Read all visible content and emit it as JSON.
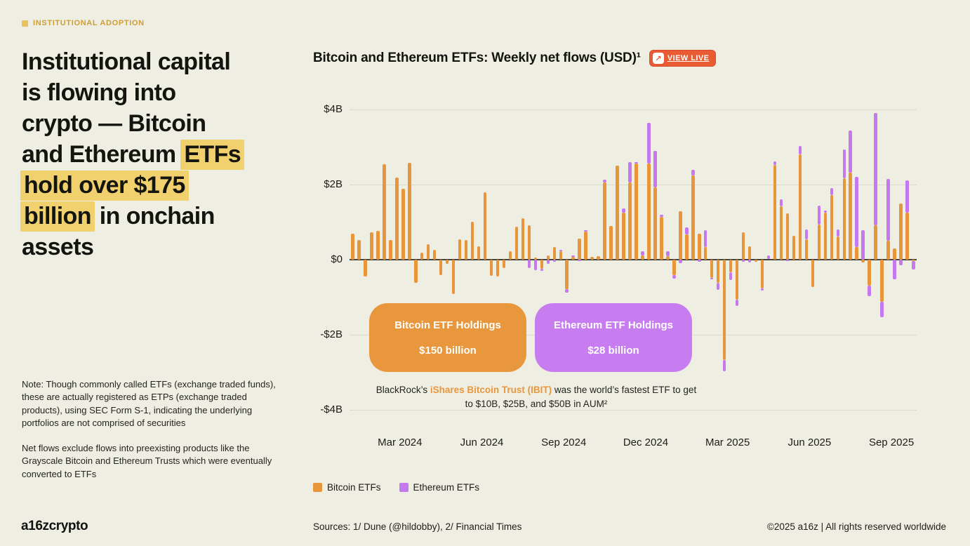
{
  "tag": {
    "label": "INSTITUTIONAL ADOPTION"
  },
  "headline": {
    "highlight_color": "#f1d06e",
    "lines": [
      [
        {
          "t": "Institutional capital"
        }
      ],
      [
        {
          "t": "is flowing into"
        }
      ],
      [
        {
          "t": "crypto — Bitcoin"
        }
      ],
      [
        {
          "t": "and Ethereum "
        },
        {
          "t": "ETFs",
          "hl": true
        }
      ],
      [
        {
          "t": "hold over $175",
          "hl": true
        }
      ],
      [
        {
          "t": "billion",
          "hl": true
        },
        {
          "t": " in onchain"
        }
      ],
      [
        {
          "t": "assets"
        }
      ]
    ]
  },
  "notes": [
    "Note: Though commonly called ETFs (exchange traded funds), these are actually registered as ETPs (exchange traded products), using SEC Form S-1, indicating the underlying portfolios are not comprised of securities",
    "Net flows exclude flows into preexisting products like the Grayscale Bitcoin and Ethereum Trusts which were eventually converted to ETFs"
  ],
  "logo": "a16zcrypto",
  "chart": {
    "title": "Bitcoin and Ethereum ETFs: Weekly net flows (USD)¹",
    "view_live": {
      "label": "VIEW LIVE",
      "arrow": "↗",
      "bg": "#e85b33"
    },
    "y_ticks": [
      "$4B",
      "$2B",
      "$0",
      "-$2B",
      "-$4B"
    ],
    "x_ticks": [
      {
        "label": "Mar 2024",
        "week": 7.5
      },
      {
        "label": "Jun 2024",
        "week": 20.5
      },
      {
        "label": "Sep 2024",
        "week": 33.5
      },
      {
        "label": "Dec 2024",
        "week": 46.5
      },
      {
        "label": "Mar 2025",
        "week": 59.5
      },
      {
        "label": "Jun 2025",
        "week": 72.5
      },
      {
        "label": "Sep 2025",
        "week": 85.5
      }
    ],
    "callouts": [
      {
        "title": "Bitcoin ETF Holdings",
        "value": "$150 billion",
        "bg": "#e8973c"
      },
      {
        "title": "Ethereum ETF Holdings",
        "value": "$28 billion",
        "bg": "#c77df0"
      }
    ],
    "annotation": {
      "pre": "BlackRock’s ",
      "em": "iShares Bitcoin Trust (IBIT)",
      "post": " was the world’s fastest ETF to get to $10B, $25B, and $50B in AUM²"
    },
    "legend": [
      {
        "label": "Bitcoin ETFs",
        "color": "#e8963c"
      },
      {
        "label": "Ethereum ETFs",
        "color": "#c579ef"
      }
    ]
  },
  "chart_data": {
    "type": "bar",
    "stacked": true,
    "title": "Bitcoin and Ethereum ETFs: Weekly net flows (USD)",
    "unit": "billion USD",
    "x_desc": "weekly net flows, Jan 2024 – Oct 2025 (90 weeks)",
    "ylim": [
      -4,
      4
    ],
    "grid_values": [
      4,
      2,
      -2,
      -4
    ],
    "series": [
      {
        "name": "Bitcoin ETFs",
        "color": "#e8963c",
        "values": [
          0.69,
          0.52,
          -0.44,
          0.72,
          0.76,
          2.54,
          0.52,
          2.19,
          1.89,
          2.58,
          -0.61,
          0.19,
          0.42,
          0.26,
          -0.41,
          -0.11,
          -0.92,
          0.54,
          0.52,
          1.01,
          0.36,
          1.79,
          -0.43,
          -0.45,
          -0.22,
          0.22,
          0.88,
          1.11,
          0.91,
          0.05,
          -0.24,
          0.11,
          0.33,
          0.22,
          -0.79,
          0.08,
          0.57,
          0.74,
          0.08,
          0.1,
          2.05,
          0.89,
          2.51,
          1.26,
          2.06,
          2.56,
          0.12,
          2.56,
          1.93,
          1.14,
          0.1,
          -0.42,
          1.29,
          0.67,
          2.25,
          0.69,
          0.33,
          -0.49,
          -0.62,
          -2.67,
          -0.34,
          -1.07,
          0.72,
          0.36,
          -0.05,
          -0.76,
          0.02,
          2.53,
          1.42,
          1.24,
          0.64,
          2.81,
          0.55,
          -0.72,
          0.94,
          1.25,
          1.72,
          0.61,
          2.16,
          2.31,
          0.34,
          -0.08,
          -0.69,
          0.91,
          -1.13,
          0.51,
          0.29,
          1.5,
          1.25,
          -0.04
        ]
      },
      {
        "name": "Ethereum ETFs",
        "color": "#c579ef",
        "values": [
          0,
          0,
          0,
          0,
          0,
          0,
          0,
          0,
          0,
          0,
          0,
          0,
          0,
          0,
          0,
          0,
          0,
          0,
          0,
          0,
          0,
          0,
          0,
          0,
          0,
          0,
          0,
          0,
          -0.23,
          -0.28,
          -0.06,
          -0.12,
          -0.06,
          0.04,
          -0.09,
          0.04,
          -0.03,
          0.05,
          0,
          0.02,
          0.08,
          0,
          0,
          0.1,
          0.53,
          0.04,
          0.1,
          1.08,
          0.96,
          0.06,
          0.12,
          -0.08,
          -0.1,
          0.19,
          0.14,
          -0.05,
          0.45,
          -0.04,
          -0.18,
          -0.3,
          -0.2,
          -0.16,
          -0.05,
          -0.07,
          -0.02,
          -0.06,
          0.1,
          0.08,
          0.19,
          -0.03,
          0,
          0.21,
          0.25,
          0,
          0.5,
          0.05,
          0.19,
          0.19,
          0.77,
          1.13,
          1.86,
          0.78,
          -0.28,
          3.0,
          -0.41,
          1.64,
          -0.53,
          -0.15,
          0.86,
          -0.22
        ]
      }
    ],
    "legend_position": "bottom-left"
  },
  "footer": {
    "sources": "Sources: 1/ Dune (@hildobby), 2/ Financial Times",
    "copyright": "©2025 a16z | All rights reserved worldwide"
  }
}
